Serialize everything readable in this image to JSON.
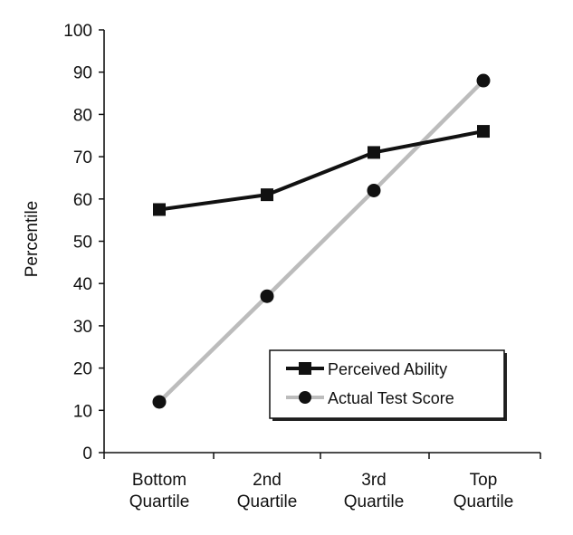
{
  "chart_data": {
    "type": "line",
    "title": "",
    "xlabel": "",
    "ylabel": "Percentile",
    "ylim": [
      0,
      100
    ],
    "yticks": [
      0,
      10,
      20,
      30,
      40,
      50,
      60,
      70,
      80,
      90,
      100
    ],
    "categories": [
      [
        "Bottom",
        "Quartile"
      ],
      [
        "2nd",
        "Quartile"
      ],
      [
        "3rd",
        "Quartile"
      ],
      [
        "Top",
        "Quartile"
      ]
    ],
    "series": [
      {
        "name": "Perceived Ability",
        "values": [
          57.5,
          61,
          71,
          76
        ],
        "color": "#111111",
        "marker": "square"
      },
      {
        "name": "Actual Test Score",
        "values": [
          12,
          37,
          62,
          88
        ],
        "color": "#bbbbbb",
        "marker": "circle"
      }
    ],
    "legend": {
      "placement": "bottom-right"
    },
    "grid": false
  }
}
